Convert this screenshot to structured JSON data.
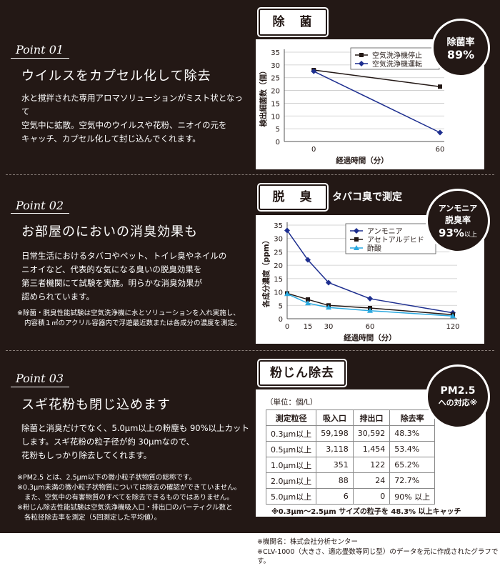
{
  "sections": [
    {
      "point": "Point 01",
      "heading": "ウイルスをカプセル化して除去",
      "body": [
        "水と撹拌された専用アロマソリューションがミスト状となって",
        "空気中に拡散。空気中のウイルスや花粉、ニオイの元を",
        "キャッチ、カプセル化して封じ込んでくれます。"
      ],
      "tag": "除　菌",
      "badge": {
        "line1": "除菌率",
        "value": "89%"
      }
    },
    {
      "point": "Point 02",
      "heading": "お部屋のにおいの消臭効果も",
      "body": [
        "日常生活におけるタバコやペット、トイレ臭やネイルの",
        "ニオイなど、代表的な気になる臭いの脱臭効果を",
        "第三者機関にて試験を実施。明らかな消臭効果が",
        "認められています。"
      ],
      "notes": [
        "※除菌・脱臭性能試験は空気洗浄機に水とソリューションを入れ実施し、",
        "内容積１㎥のアクリル容器内で浮遊最近数または各成分の濃度を測定。"
      ],
      "tag": "脱　臭",
      "tag_sub": "タバコ臭で測定",
      "badge": {
        "line1": "アンモニア",
        "line2": "脱臭率",
        "value": "93%",
        "suffix": "以上"
      }
    },
    {
      "point": "Point 03",
      "heading": "スギ花粉も閉じ込めます",
      "body": [
        "除菌と消臭だけでなく、5.0μm以上の粉塵も 90%以上カット",
        "します。スギ花粉の粒子径が約 30μmなので、",
        "花粉もしっかり除去してくれます。"
      ],
      "notes": [
        "※PM2.5 とは、2.5μm以下の微小粒子状物質の総称です。",
        "※0.3μm未満の微小粒子状物質については除去の確認ができていません。",
        "また、空気中の有害物質のすべてを除去できるものではありません。",
        "※粉じん除去性能試験は空気洗浄機吸入口・排出口のパーティクル数と",
        "各粒径除去率を測定（5回測定した平均値）。"
      ],
      "tag": "粉じん除去",
      "badge": {
        "line1": "PM2.5",
        "line2": "への対応※"
      },
      "table": {
        "unit": "（単位：個/L）",
        "headers": [
          "測定粒径",
          "吸入口",
          "排出口",
          "除去率"
        ],
        "rows": [
          [
            "0.3μm以上",
            "59,198",
            "30,592",
            "48.3%"
          ],
          [
            "0.5μm以上",
            "3,118",
            "1,454",
            "53.4%"
          ],
          [
            "1.0μm以上",
            "351",
            "122",
            "65.2%"
          ],
          [
            "2.0μm以上",
            "88",
            "24",
            "72.7%"
          ],
          [
            "5.0μm以上",
            "6",
            "0",
            "90% 以上"
          ]
        ],
        "caption": "※0.3μm〜2.5μm サイズの粒子を 48.3% 以上キャッチ"
      }
    }
  ],
  "footer": [
    "※機関名：株式会社分析センター",
    "※CLV-1000（大きさ、適応畳数等同じ型）のデータを元に作成されたグラフです。"
  ],
  "chart_data": [
    {
      "type": "line",
      "title": "",
      "xlabel": "経過時間（分）",
      "ylabel": "検出細菌数（個）",
      "x": [
        0,
        60
      ],
      "ylim": [
        0,
        35
      ],
      "yticks": [
        0,
        5,
        10,
        15,
        20,
        25,
        30,
        35
      ],
      "legend_position": "top-right",
      "series": [
        {
          "name": "空気洗浄機停止",
          "values": [
            28,
            21.5
          ],
          "color": "#231815",
          "marker": "square"
        },
        {
          "name": "空気洗浄機運転",
          "values": [
            27.5,
            3.5
          ],
          "color": "#1d2e8f",
          "marker": "diamond"
        }
      ]
    },
    {
      "type": "line",
      "title": "",
      "xlabel": "経過時間（分）",
      "ylabel": "各成分濃度（ppm）",
      "x": [
        0,
        15,
        30,
        60,
        120
      ],
      "ylim": [
        0,
        35
      ],
      "yticks": [
        0,
        5,
        10,
        15,
        20,
        25,
        30,
        35
      ],
      "legend_position": "top-right",
      "series": [
        {
          "name": "アンモニア",
          "values": [
            33,
            22,
            13.5,
            7.5,
            2.2
          ],
          "color": "#1d2e8f",
          "marker": "diamond"
        },
        {
          "name": "アセトアルデヒド",
          "values": [
            9.5,
            7.2,
            5,
            4,
            1.5
          ],
          "color": "#231815",
          "marker": "square"
        },
        {
          "name": "酢酸",
          "values": [
            9.3,
            5.8,
            4.2,
            3,
            1
          ],
          "color": "#2aa9e0",
          "marker": "triangle"
        }
      ]
    }
  ]
}
